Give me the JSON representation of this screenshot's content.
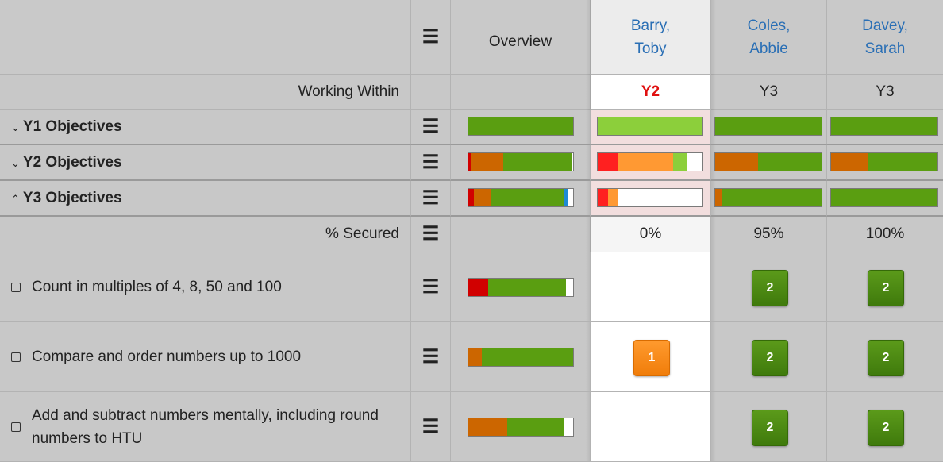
{
  "colors": {
    "green": "#5a9e11",
    "light_green": "#8ccf3b",
    "orange": "#cc6600",
    "light_orange": "#ff9933",
    "red": "#d10000",
    "bright_red": "#ff2020",
    "blue": "#1e8ad4",
    "white": "#ffffff",
    "gray": "#d9d9d9",
    "pupil_link": "#2a6fb5",
    "working_within_alert": "#e01010"
  },
  "header": {
    "menu_icon": "hamburger-icon",
    "overview_label": "Overview",
    "pupils": [
      {
        "first_line": "Barry,",
        "second_line": "Toby",
        "selected": true
      },
      {
        "first_line": "Coles,",
        "second_line": "Abbie",
        "selected": false
      },
      {
        "first_line": "Davey,",
        "second_line": "Sarah",
        "selected": false
      }
    ]
  },
  "working_within": {
    "label": "Working Within",
    "values": [
      "Y2",
      "Y3",
      "Y3"
    ]
  },
  "groups": [
    {
      "label": "Y1 Objectives",
      "chevron": "double-chevron-down-icon",
      "overview": [
        [
          "green",
          100
        ]
      ],
      "pupils": [
        [
          [
            "light_green",
            100
          ]
        ],
        [
          [
            "green",
            100
          ]
        ],
        [
          [
            "green",
            100
          ]
        ]
      ]
    },
    {
      "label": "Y2 Objectives",
      "chevron": "double-chevron-down-icon",
      "overview": [
        [
          "red",
          3
        ],
        [
          "orange",
          30
        ],
        [
          "green",
          66
        ],
        [
          "white",
          1
        ]
      ],
      "pupils": [
        [
          [
            "bright_red",
            20
          ],
          [
            "light_orange",
            52
          ],
          [
            "light_green",
            13
          ],
          [
            "white",
            15
          ]
        ],
        [
          [
            "orange",
            40
          ],
          [
            "green",
            60
          ]
        ],
        [
          [
            "orange",
            34
          ],
          [
            "green",
            66
          ]
        ]
      ]
    },
    {
      "label": "Y3 Objectives",
      "chevron": "double-chevron-up-icon",
      "overview": [
        [
          "red",
          5
        ],
        [
          "orange",
          17
        ],
        [
          "green",
          70
        ],
        [
          "blue",
          3
        ],
        [
          "white",
          5
        ]
      ],
      "pupils": [
        [
          [
            "bright_red",
            10
          ],
          [
            "light_orange",
            10
          ],
          [
            "white",
            80
          ]
        ],
        [
          [
            "orange",
            6
          ],
          [
            "green",
            94
          ]
        ],
        [
          [
            "green",
            100
          ]
        ]
      ]
    }
  ],
  "secured": {
    "label": "% Secured",
    "values": [
      "0%",
      "95%",
      "100%"
    ]
  },
  "objectives": [
    {
      "text": "Count in multiples of 4, 8, 50 and 100",
      "overview": [
        [
          "red",
          19
        ],
        [
          "green",
          74
        ],
        [
          "white",
          7
        ]
      ],
      "badges": [
        "",
        "2",
        "2"
      ]
    },
    {
      "text": "Compare and order numbers up to 1000",
      "overview": [
        [
          "orange",
          13
        ],
        [
          "green",
          87
        ]
      ],
      "badges": [
        "1",
        "2",
        "2"
      ]
    },
    {
      "text": "Add and subtract numbers mentally, including round numbers to HTU",
      "overview": [
        [
          "orange",
          37
        ],
        [
          "green",
          55
        ],
        [
          "white",
          8
        ]
      ],
      "badges": [
        "",
        "2",
        "2"
      ]
    }
  ]
}
